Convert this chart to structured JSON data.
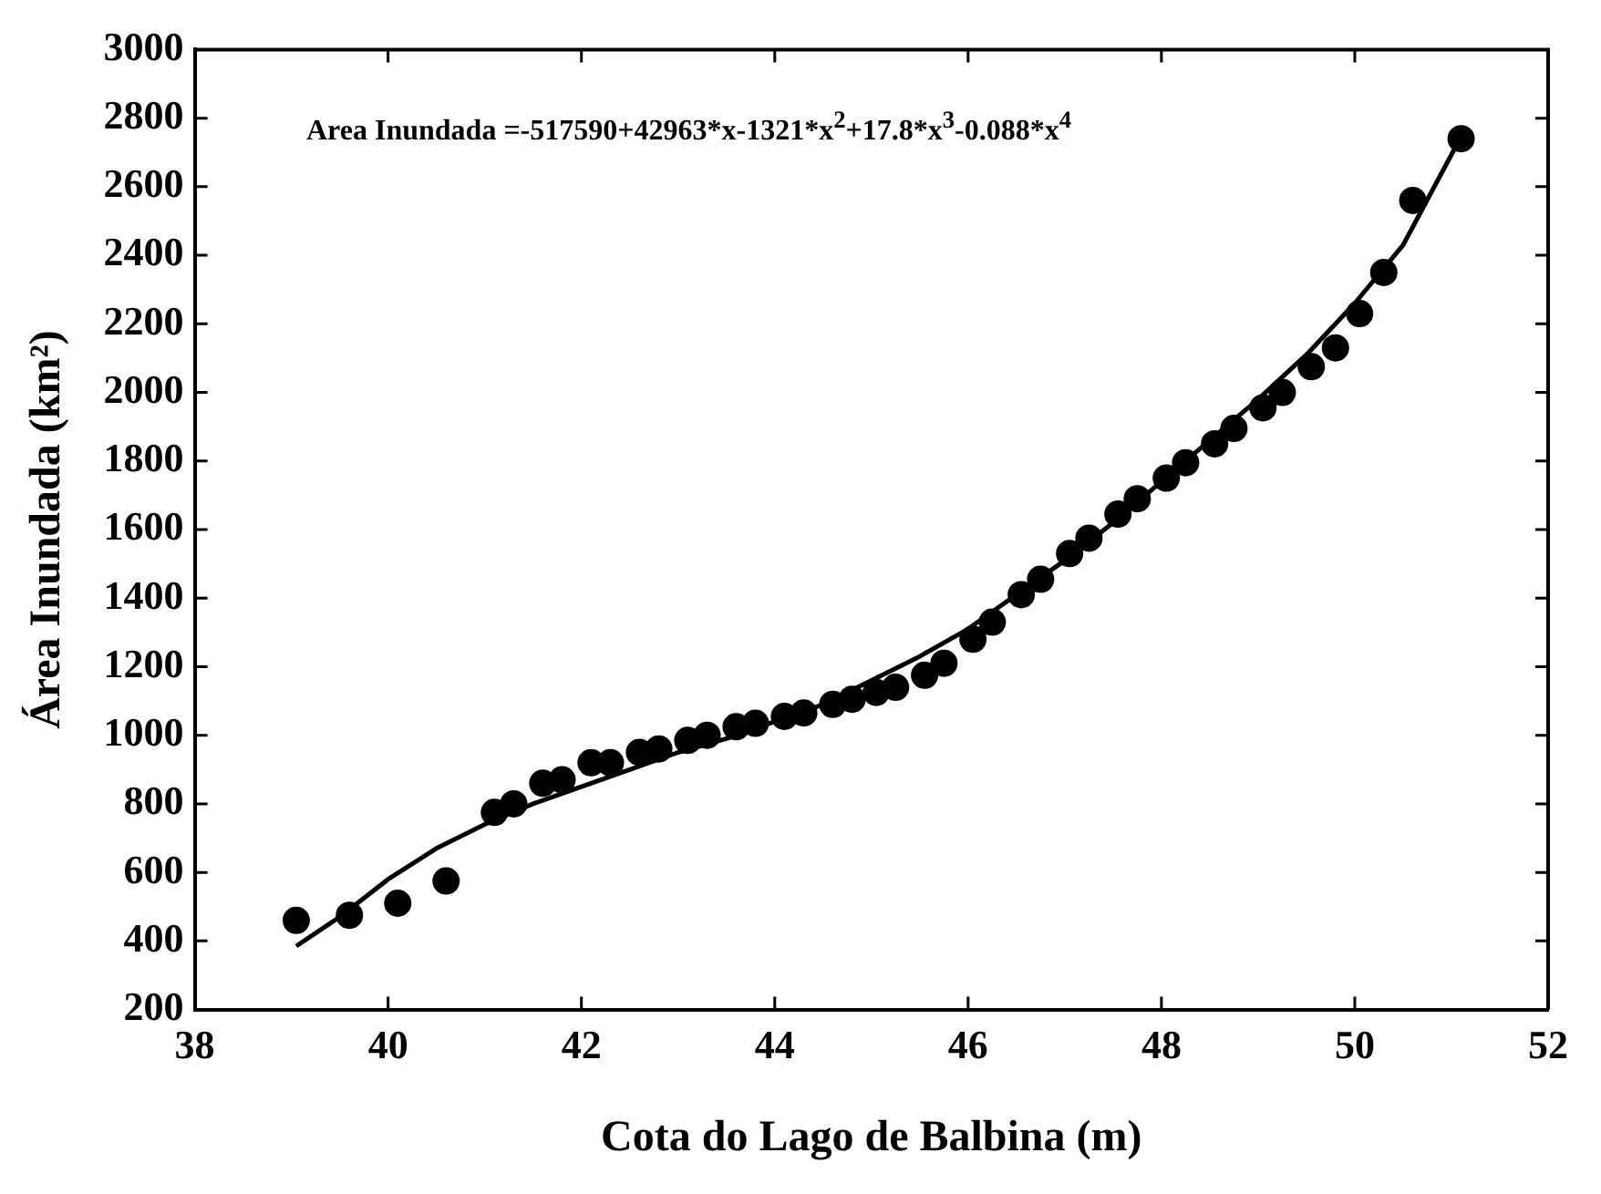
{
  "chart_data": {
    "type": "scatter",
    "xlabel": "Cota do Lago de Balbina (m)",
    "ylabel": "Área Inundada (km²)",
    "annotations": [
      "Area Inundada =-517590+42963*x-1321*x$^{2}$+17.8*x$^{3}$-0.088*x$^{4}$"
    ],
    "xlim": [
      38,
      52
    ],
    "xticks": [
      38,
      40,
      42,
      44,
      46,
      48,
      50,
      52
    ],
    "ylim": [
      200,
      3000
    ],
    "yticks": [
      200,
      400,
      600,
      800,
      1000,
      1200,
      1400,
      1600,
      1800,
      2000,
      2200,
      2400,
      2600,
      2800,
      3000
    ],
    "grid": false,
    "legend": false,
    "marker": "circle",
    "series": [
      {
        "color": "#000000",
        "x": [
          39.05,
          39.6,
          40.1,
          40.6,
          41.1,
          41.3,
          41.6,
          41.8,
          42.1,
          42.3,
          42.6,
          42.8,
          43.1,
          43.3,
          43.6,
          43.8,
          44.1,
          44.3,
          44.6,
          44.8,
          45.05,
          45.25,
          45.55,
          45.75,
          46.05,
          46.25,
          46.55,
          46.75,
          47.05,
          47.25,
          47.55,
          47.75,
          48.05,
          48.25,
          48.55,
          48.75,
          49.05,
          49.25,
          49.55,
          49.8,
          50.05,
          50.3,
          50.6,
          51.1
        ],
        "values": [
          460,
          475,
          510,
          575,
          775,
          800,
          860,
          870,
          920,
          920,
          950,
          960,
          985,
          1000,
          1025,
          1035,
          1055,
          1065,
          1090,
          1105,
          1125,
          1140,
          1175,
          1210,
          1280,
          1330,
          1410,
          1455,
          1530,
          1575,
          1645,
          1690,
          1750,
          1795,
          1850,
          1895,
          1955,
          2000,
          2075,
          2130,
          2230,
          2350,
          2560,
          2740
        ]
      },
      {
        "type": "line",
        "color": "#000000",
        "marker": "none",
        "line_style": "solid",
        "x": [
          39.05,
          39.5,
          40,
          40.5,
          41,
          41.5,
          42,
          42.5,
          43,
          43.5,
          44,
          44.5,
          45,
          45.5,
          46,
          46.5,
          47,
          47.5,
          48,
          48.5,
          49,
          49.5,
          50,
          50.5,
          51.05
        ],
        "values": [
          385,
          470,
          580,
          670,
          740,
          800,
          850,
          900,
          950,
          990,
          1040,
          1090,
          1160,
          1230,
          1310,
          1410,
          1510,
          1620,
          1740,
          1860,
          1980,
          2110,
          2260,
          2430,
          2720
        ]
      }
    ]
  }
}
